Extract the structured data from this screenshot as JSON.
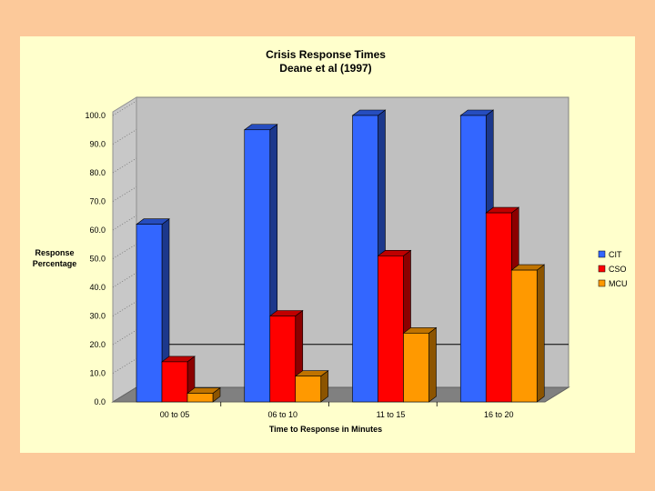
{
  "chart_data": {
    "type": "bar",
    "title": "Crisis Response Times",
    "subtitle": "Deane et al (1997)",
    "xlabel": "Time to Response in Minutes",
    "ylabel": "Response Percentage",
    "categories": [
      "00 to 05",
      "06 to 10",
      "11 to 15",
      "16 to 20"
    ],
    "series": [
      {
        "name": "CIT",
        "values": [
          62,
          95,
          100,
          100
        ],
        "color": "#3366ff"
      },
      {
        "name": "CSO",
        "values": [
          14,
          30,
          51,
          66
        ],
        "color": "#ff0000"
      },
      {
        "name": "MCU",
        "values": [
          3,
          9,
          24,
          46
        ],
        "color": "#ff9900"
      }
    ],
    "ylim": [
      0,
      100
    ],
    "yticks": [
      "0.0",
      "10.0",
      "20.0",
      "30.0",
      "40.0",
      "50.0",
      "60.0",
      "70.0",
      "80.0",
      "90.0",
      "100.0"
    ],
    "reference_line": 15,
    "grid": false,
    "legend": "right"
  }
}
